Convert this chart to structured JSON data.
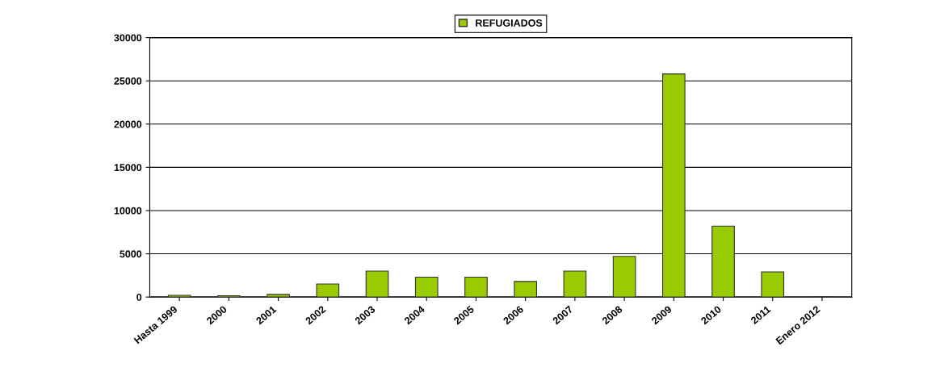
{
  "chart_data": {
    "type": "bar",
    "categories": [
      "Hasta 1999",
      "2000",
      "2001",
      "2002",
      "2003",
      "2004",
      "2005",
      "2006",
      "2007",
      "2008",
      "2009",
      "2010",
      "2011",
      "Enero 2012"
    ],
    "series": [
      {
        "name": "REFUGIADOS",
        "color": "#99cc00",
        "values": [
          200,
          150,
          300,
          1500,
          3000,
          2300,
          2300,
          1800,
          3000,
          4700,
          25800,
          8200,
          2900,
          50
        ]
      }
    ],
    "ylim": [
      0,
      30000
    ],
    "yticks": [
      0,
      5000,
      10000,
      15000,
      20000,
      25000,
      30000
    ],
    "grid": "y",
    "legend": "top"
  }
}
